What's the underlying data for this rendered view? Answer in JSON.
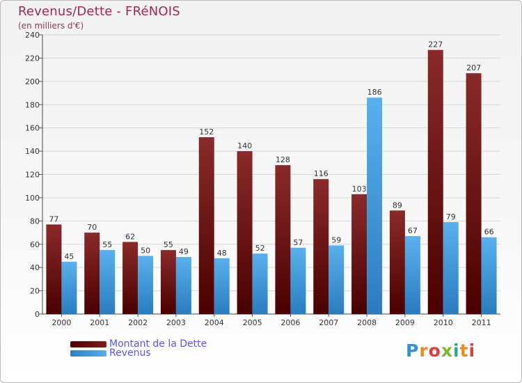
{
  "chart_data": {
    "type": "bar",
    "title": "Revenus/Dette - FRéNOIS",
    "subtitle": "(en milliers d'€)",
    "categories": [
      "2000",
      "2001",
      "2002",
      "2003",
      "2004",
      "2005",
      "2006",
      "2007",
      "2008",
      "2009",
      "2010",
      "2011"
    ],
    "series": [
      {
        "name": "Montant de la Dette",
        "color": "#7a1a1a",
        "values": [
          77,
          70,
          62,
          55,
          152,
          140,
          128,
          116,
          103,
          89,
          227,
          207
        ]
      },
      {
        "name": "Revenus",
        "color": "#4da6e6",
        "values": [
          45,
          55,
          50,
          49,
          48,
          52,
          57,
          59,
          186,
          67,
          79,
          66
        ]
      }
    ],
    "ylim": [
      0,
      240
    ],
    "yticks": [
      0,
      20,
      40,
      60,
      80,
      100,
      120,
      140,
      160,
      180,
      200,
      220,
      240
    ],
    "grid": true,
    "legend_position": "bottom-left"
  },
  "logo": {
    "text": "Proxiti",
    "letters": [
      "P",
      "r",
      "o",
      "x",
      "i",
      "t",
      "i"
    ]
  }
}
